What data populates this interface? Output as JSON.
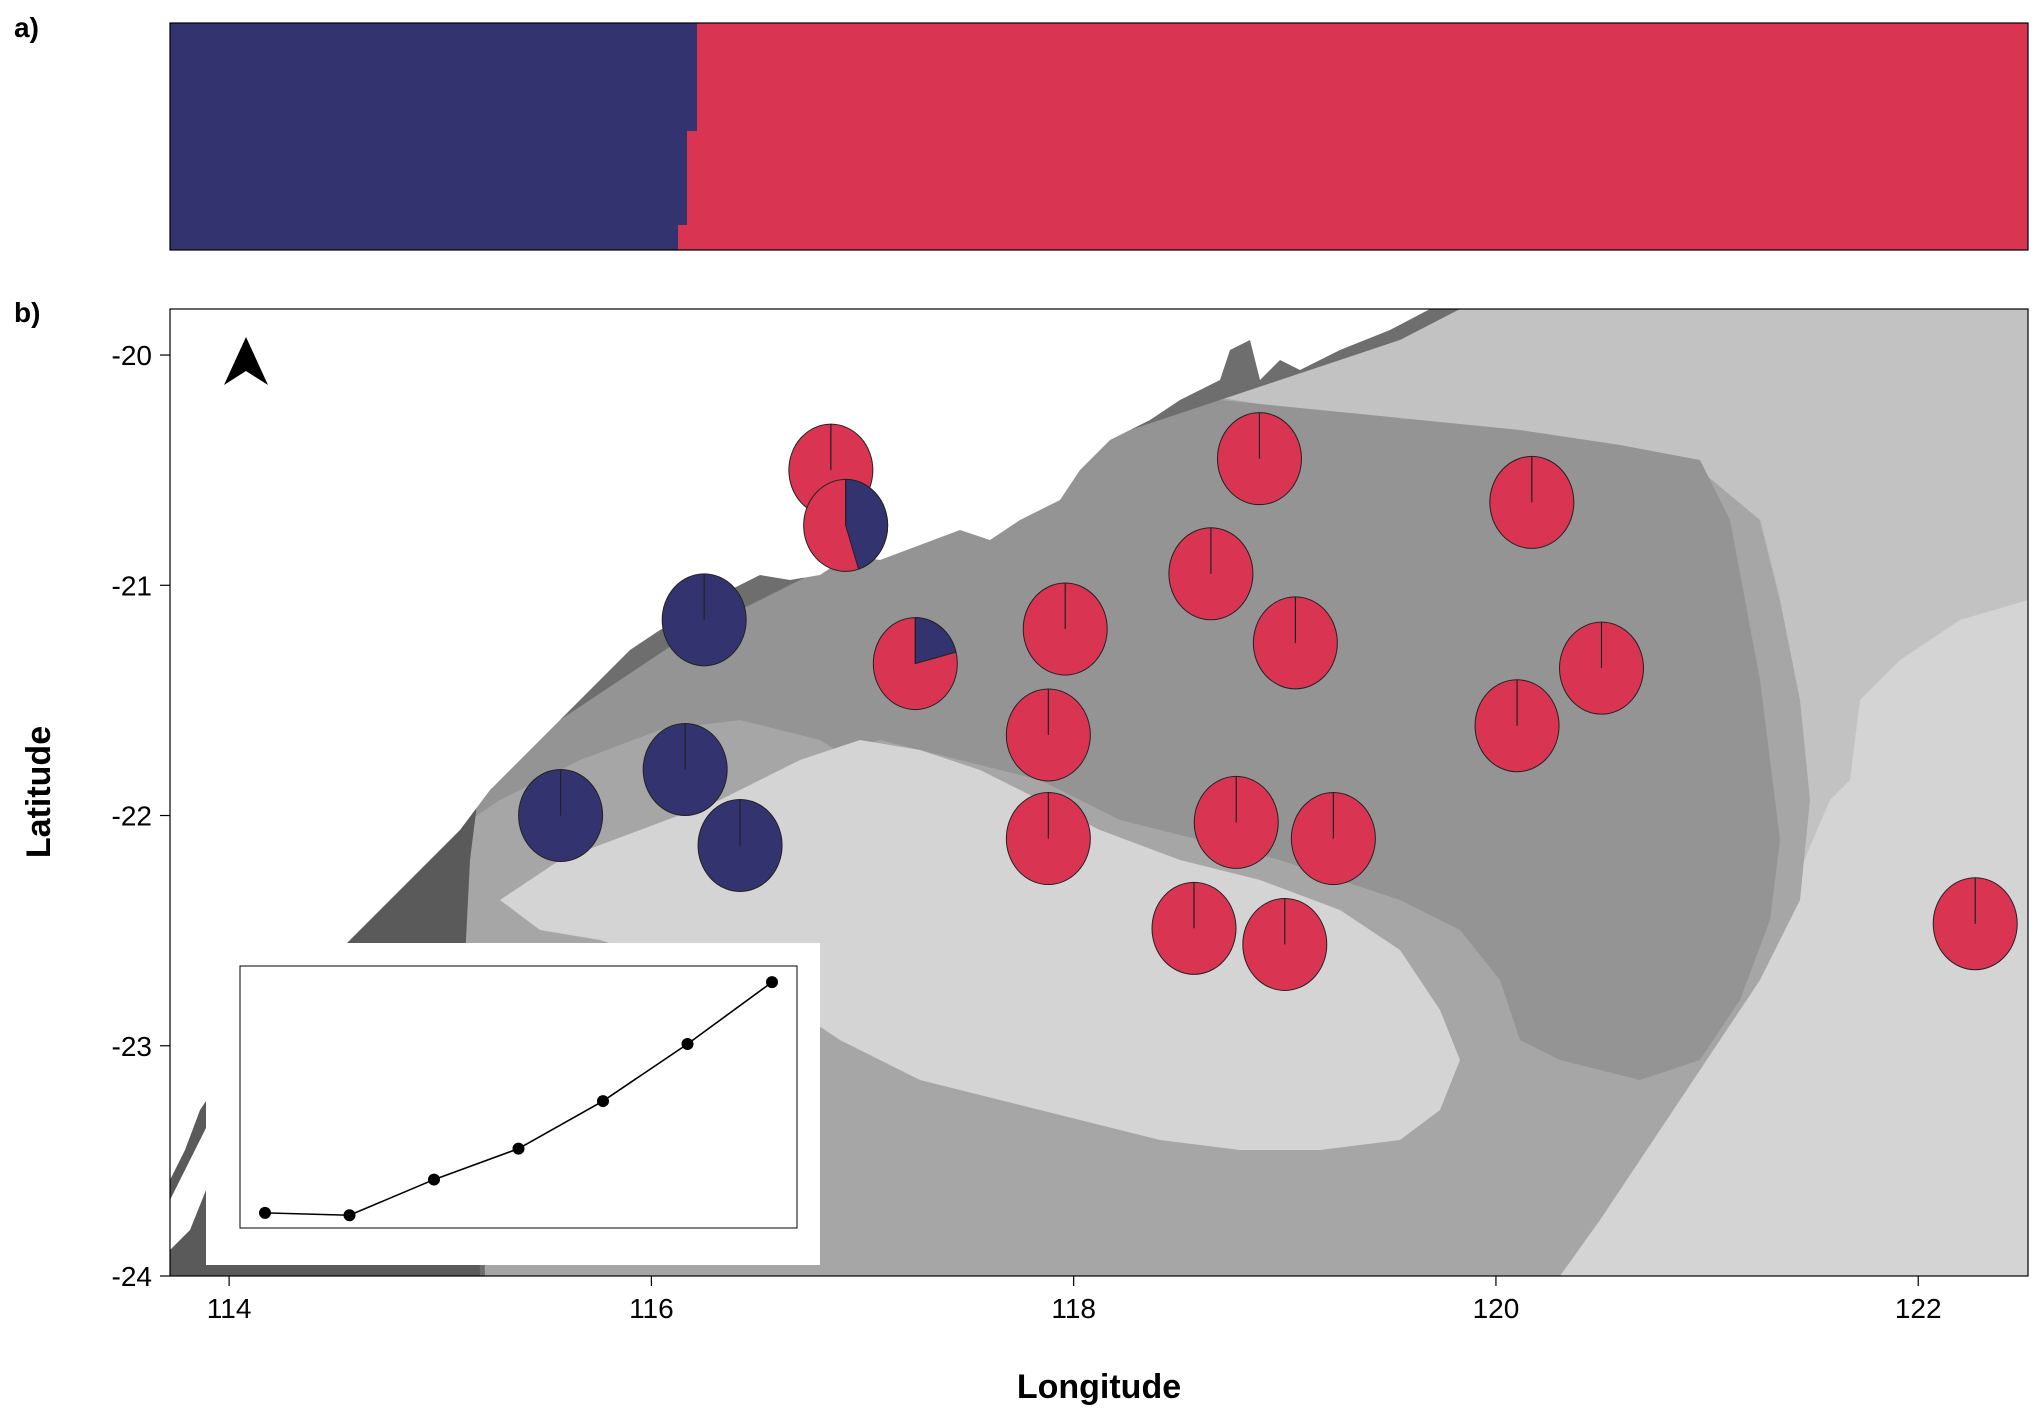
{
  "figure": {
    "panel_a_label": "a)",
    "panel_b_label": "b)"
  },
  "colors": {
    "cluster_blue": "#333370",
    "cluster_red": "#D93552",
    "land": "#ffffff",
    "depth_shallow": "#6e6e6e",
    "depth_inner": "#949494",
    "depth_mid": "#a6a6a6",
    "depth_outer": "#c2c2c2",
    "depth_deep": "#d4d4d4"
  },
  "structure_bar": {
    "samples": 108,
    "blue_fraction_by_block": [
      {
        "from": 0.0,
        "to": 0.28,
        "blue": 1.0
      },
      {
        "from": 0.28,
        "to": 0.3,
        "blue": 1.0
      }
    ],
    "note_visible": ""
  },
  "map": {
    "xlabel": "Longitude",
    "ylabel": "Latitude",
    "xlim": [
      113.72,
      122.52
    ],
    "ylim": [
      -24.0,
      -19.8
    ],
    "xticks": [
      {
        "value": 114,
        "label": "114"
      },
      {
        "value": 116,
        "label": "116"
      },
      {
        "value": 118,
        "label": "118"
      },
      {
        "value": 120,
        "label": "120"
      },
      {
        "value": 122,
        "label": "122"
      }
    ],
    "yticks": [
      {
        "value": -20,
        "label": "-20"
      },
      {
        "value": -21,
        "label": "-21"
      },
      {
        "value": -22,
        "label": "-22"
      },
      {
        "value": -23,
        "label": "-23"
      },
      {
        "value": -24,
        "label": "-24"
      }
    ],
    "north_arrow": "north-arrow-icon",
    "sites": [
      {
        "lon": 116.85,
        "lat": -20.5,
        "blue": 0.0
      },
      {
        "lon": 116.92,
        "lat": -20.74,
        "blue": 0.45
      },
      {
        "lon": 116.25,
        "lat": -21.15,
        "blue": 1.0
      },
      {
        "lon": 117.25,
        "lat": -21.34,
        "blue": 0.21
      },
      {
        "lon": 117.96,
        "lat": -21.19,
        "blue": 0.0
      },
      {
        "lon": 118.65,
        "lat": -20.95,
        "blue": 0.0
      },
      {
        "lon": 118.88,
        "lat": -20.45,
        "blue": 0.0
      },
      {
        "lon": 119.05,
        "lat": -21.25,
        "blue": 0.0
      },
      {
        "lon": 120.17,
        "lat": -20.64,
        "blue": 0.0
      },
      {
        "lon": 120.5,
        "lat": -21.36,
        "blue": 0.0
      },
      {
        "lon": 120.1,
        "lat": -21.61,
        "blue": 0.0
      },
      {
        "lon": 117.88,
        "lat": -21.65,
        "blue": 0.0
      },
      {
        "lon": 116.16,
        "lat": -21.8,
        "blue": 1.0
      },
      {
        "lon": 115.57,
        "lat": -22.0,
        "blue": 1.0
      },
      {
        "lon": 116.42,
        "lat": -22.13,
        "blue": 1.0
      },
      {
        "lon": 117.88,
        "lat": -22.1,
        "blue": 0.0
      },
      {
        "lon": 118.77,
        "lat": -22.03,
        "blue": 0.0
      },
      {
        "lon": 119.23,
        "lat": -22.1,
        "blue": 0.0
      },
      {
        "lon": 118.57,
        "lat": -22.49,
        "blue": 0.0
      },
      {
        "lon": 119.0,
        "lat": -22.56,
        "blue": 0.0
      },
      {
        "lon": 122.27,
        "lat": -22.47,
        "blue": 0.0
      }
    ]
  },
  "inset": {
    "type": "line",
    "x": [
      1,
      2,
      3,
      4,
      5,
      6,
      7
    ],
    "y": [
      0.03,
      0.02,
      0.17,
      0.3,
      0.5,
      0.74,
      1.0
    ],
    "ylim": [
      0,
      1.03
    ]
  }
}
